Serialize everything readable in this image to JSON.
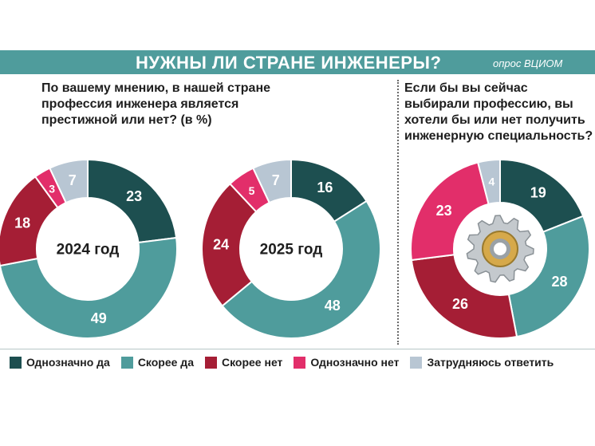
{
  "header": {
    "title": "НУЖНЫ ЛИ СТРАНЕ ИНЖЕНЕРЫ?",
    "source": "опрос ВЦИОМ"
  },
  "questions": {
    "left": "По вашему мнению, в нашей стране профессия инженера является престижной или нет? (в %)",
    "right": "Если бы вы сейчас выбирали профессию, вы хотели бы или нет получить инженерную специальность?"
  },
  "legend": [
    {
      "label": "Однозначно да",
      "color": "#1d4f50"
    },
    {
      "label": "Скорее да",
      "color": "#4f9c9c"
    },
    {
      "label": "Скорее нет",
      "color": "#a51e35"
    },
    {
      "label": "Однозначно нет",
      "color": "#e22e6a"
    },
    {
      "label": "Затрудняюсь ответить",
      "color": "#b8c6d3"
    }
  ],
  "chart_data": [
    {
      "type": "pie",
      "variant": "donut",
      "center_label": "2024 год",
      "categories": [
        "Однозначно да",
        "Скорее да",
        "Скорее нет",
        "Однозначно нет",
        "Затрудняюсь ответить"
      ],
      "values": [
        23,
        49,
        18,
        3,
        7
      ]
    },
    {
      "type": "pie",
      "variant": "donut",
      "center_label": "2025 год",
      "categories": [
        "Однозначно да",
        "Скорее да",
        "Скорее нет",
        "Однозначно нет",
        "Затрудняюсь ответить"
      ],
      "values": [
        16,
        48,
        24,
        5,
        7
      ]
    },
    {
      "type": "pie",
      "variant": "donut",
      "center_label": "",
      "categories": [
        "Однозначно да",
        "Скорее да",
        "Скорее нет",
        "Однозначно нет",
        "Затрудняюсь ответить"
      ],
      "values": [
        19,
        28,
        26,
        23,
        4
      ]
    }
  ]
}
